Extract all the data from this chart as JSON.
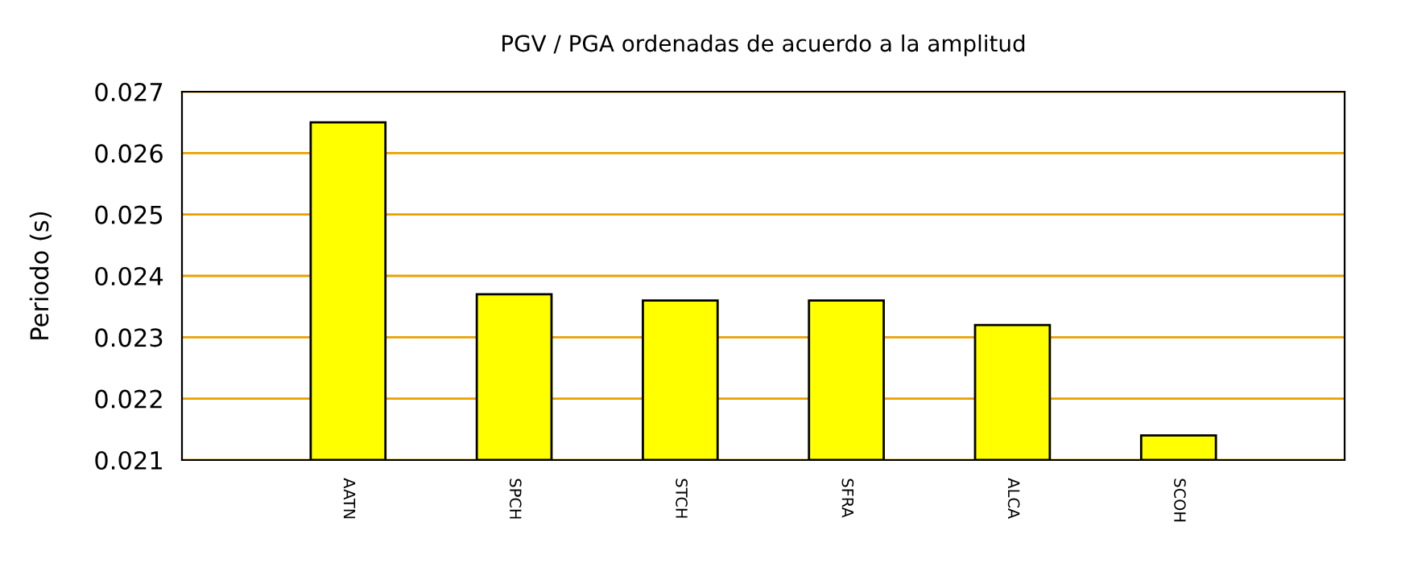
{
  "chart_data": {
    "type": "bar",
    "title": "PGV / PGA ordenadas de acuerdo a la amplitud",
    "ylabel": "Periodo (s)",
    "categories": [
      "AATN",
      "SPCH",
      "STCH",
      "SFRA",
      "ALCA",
      "SCOH"
    ],
    "values": [
      0.0265,
      0.0237,
      0.0236,
      0.0236,
      0.0232,
      0.0214
    ],
    "color": "#ffff00",
    "ylim": [
      0.021,
      0.027
    ],
    "yticks": [
      0.021,
      0.022,
      0.023,
      0.024,
      0.025,
      0.026,
      0.027
    ],
    "grid": "y"
  }
}
